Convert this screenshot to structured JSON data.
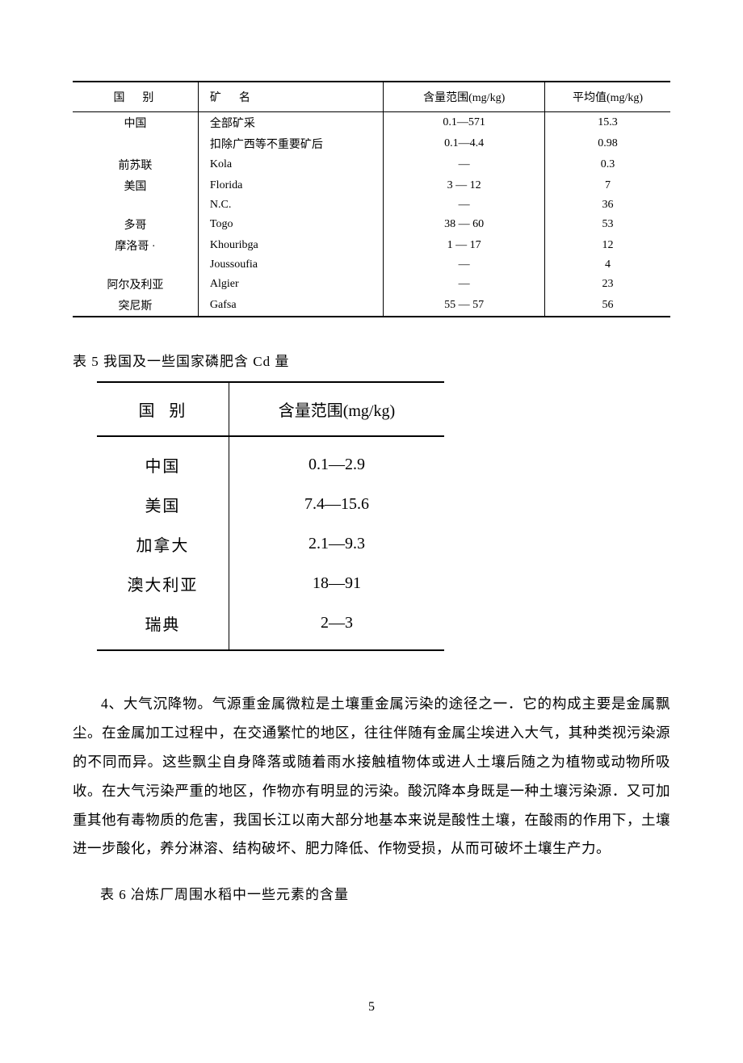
{
  "table1": {
    "headers": [
      "国　别",
      "矿　名",
      "含量范围(mg/kg)",
      "平均值(mg/kg)"
    ],
    "rows": [
      [
        "中国",
        "全部矿采",
        "0.1—571",
        "15.3"
      ],
      [
        "",
        "扣除广西等不重要矿后",
        "0.1—4.4",
        "0.98"
      ],
      [
        "前苏联",
        "Kola",
        "—",
        "0.3"
      ],
      [
        "美国",
        "Florida",
        "3 — 12",
        "7"
      ],
      [
        "",
        "N.C.",
        "—",
        "36"
      ],
      [
        "多哥",
        "Togo",
        "38 — 60",
        "53"
      ],
      [
        "摩洛哥 ·",
        "Khouribga",
        "1 — 17",
        "12"
      ],
      [
        "",
        "Joussoufia",
        "—",
        "4"
      ],
      [
        "阿尔及利亚",
        "Algier",
        "—",
        "23"
      ],
      [
        "突尼斯",
        "Gafsa",
        "55 — 57",
        "56"
      ]
    ]
  },
  "caption5": "表 5 我国及一些国家磷肥含 Cd 量",
  "table2": {
    "headers": [
      "国别",
      "含量范围(mg/kg)"
    ],
    "rows": [
      [
        "中国",
        "0.1—2.9"
      ],
      [
        "美国",
        "7.4—15.6"
      ],
      [
        "加拿大",
        "2.1—9.3"
      ],
      [
        "澳大利亚",
        "18—91"
      ],
      [
        "瑞典",
        "2—3"
      ]
    ]
  },
  "paragraph4": "4、大气沉降物。气源重金属微粒是土壤重金属污染的途径之一．它的构成主要是金属飘尘。在金属加工过程中，在交通繁忙的地区，往往伴随有金属尘埃进入大气，其种类视污染源的不同而异。这些飘尘自身降落或随着雨水接触植物体或进人土壤后随之为植物或动物所吸收。在大气污染严重的地区，作物亦有明显的污染。酸沉降本身既是一种土壤污染源．又可加重其他有毒物质的危害，我国长江以南大部分地基本来说是酸性土壤，在酸雨的作用下，土壤进一步酸化，养分淋溶、结构破坏、肥力降低、作物受损，从而可破坏土壤生产力。",
  "caption6": "表 6 冶炼厂周围水稻中一些元素的含量",
  "pageNumber": "5"
}
